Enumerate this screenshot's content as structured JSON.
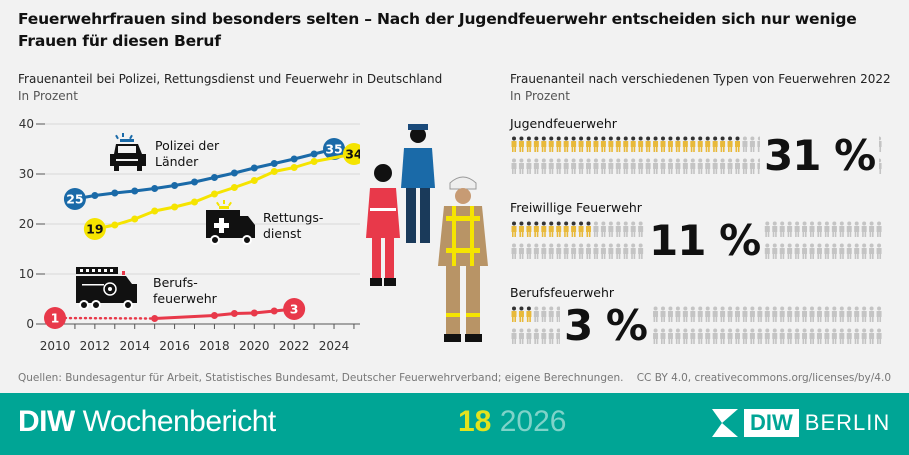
{
  "title": "Feuerwehrfrauen sind besonders selten – Nach der Jugendfeuerwehr entscheiden sich nur wenige Frauen für diesen Beruf",
  "left": {
    "subtitle": "Frauenanteil bei Polizei, Rettungsdienst und Feuerwehr in Deutschland",
    "unit": "In Prozent",
    "labels": {
      "police": "Polizei der Länder",
      "rescue": "Rettungs-dienst",
      "fire": "Berufs-feuerwehr"
    },
    "icons": [
      "police-car-icon",
      "ambulance-icon",
      "fire-truck-icon"
    ]
  },
  "chart_data": {
    "type": "line",
    "xlim": [
      2010,
      2025
    ],
    "ylim": [
      0,
      40
    ],
    "xticks": [
      2010,
      2012,
      2014,
      2016,
      2018,
      2020,
      2022,
      2024
    ],
    "yticks": [
      0,
      10,
      20,
      30,
      40
    ],
    "grid": true,
    "series": [
      {
        "name": "Polizei der Länder",
        "color": "#1a6aa8",
        "start_label": "25",
        "end_label": "35",
        "x": [
          2011,
          2012,
          2013,
          2014,
          2015,
          2016,
          2017,
          2018,
          2019,
          2020,
          2021,
          2022,
          2023,
          2024
        ],
        "y": [
          25,
          25.7,
          26.2,
          26.6,
          27.1,
          27.7,
          28.4,
          29.3,
          30.2,
          31.2,
          32.1,
          33,
          34,
          35
        ]
      },
      {
        "name": "Rettungsdienst",
        "color": "#f5e400",
        "start_label": "19",
        "end_label": "34",
        "x": [
          2012,
          2013,
          2014,
          2015,
          2016,
          2017,
          2018,
          2019,
          2020,
          2021,
          2022,
          2023,
          2025
        ],
        "y": [
          19,
          19.8,
          21,
          22.6,
          23.4,
          24.4,
          26,
          27.3,
          28.7,
          30.5,
          31.3,
          32.5,
          34
        ]
      },
      {
        "name": "Berufsfeuerwehr",
        "color": "#e8394a",
        "start_label": "1",
        "end_label": "3",
        "dotted_until": 2015,
        "x": [
          2010,
          2015,
          2018,
          2019,
          2020,
          2021,
          2022
        ],
        "y": [
          1.2,
          1.1,
          1.7,
          2.1,
          2.2,
          2.6,
          3
        ]
      }
    ]
  },
  "right": {
    "subtitle": "Frauenanteil nach verschiedenen Typen von Feuerwehren 2022",
    "unit": "In Prozent",
    "groups": [
      {
        "label": "Jugendfeuerwehr",
        "value": 31,
        "text": "31 %"
      },
      {
        "label": "Freiwillige Feuerwehr",
        "value": 11,
        "text": "11 %"
      },
      {
        "label": "Berufsfeuerwehr",
        "value": 3,
        "text": "3 %"
      }
    ],
    "colors": {
      "highlight": "#e8b93a",
      "rest": "#c4c4c4"
    }
  },
  "sources": "Quellen: Bundesagentur für Arbeit, Statistisches Bundesamt, Deutscher Feuerwehrverband; eigene Berechnungen.",
  "license": "CC BY 4.0, creativecommons.org/licenses/by/4.0",
  "footer": {
    "brand_bold": "DIW",
    "brand": "Wochenbericht",
    "issue": "18",
    "year": "2026",
    "logo_box": "DIW",
    "logo_text": "BERLIN"
  }
}
